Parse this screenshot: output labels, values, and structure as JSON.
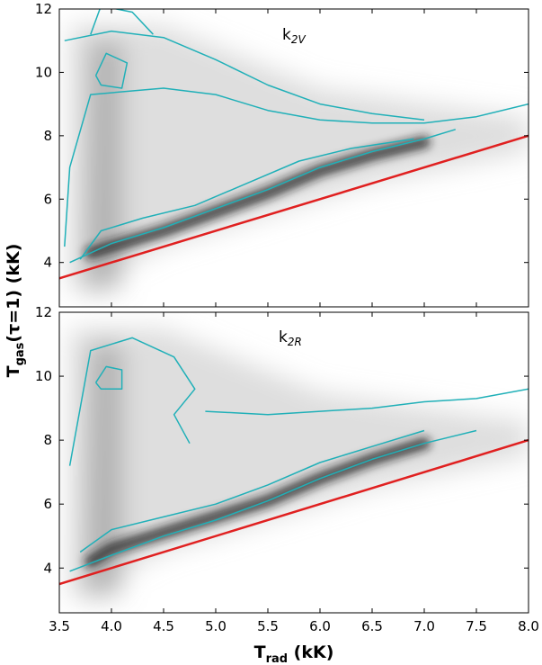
{
  "xlabel": {
    "main": "T",
    "sub": "rad",
    "rest": " (kK)"
  },
  "ylabel": {
    "main": "T",
    "sub": "gas",
    "rest": "(τ=1) (kK)"
  },
  "chart_data": [
    {
      "type": "heatmap",
      "panel_label": {
        "main": "k",
        "sub": "2V"
      },
      "xlim": [
        3.5,
        8.0
      ],
      "ylim": [
        2.6,
        12
      ],
      "xticks": [
        3.5,
        4.0,
        4.5,
        5.0,
        5.5,
        6.0,
        6.5,
        7.0,
        7.5,
        8.0
      ],
      "yticks": [
        4,
        6,
        8,
        10,
        12
      ],
      "reference_line": {
        "color": "#e02020",
        "points": [
          [
            3.5,
            3.5
          ],
          [
            8.0,
            8.0
          ]
        ]
      },
      "contour_color": "#20b0b8",
      "density_ridge": [
        [
          3.8,
          4.3
        ],
        [
          4.0,
          4.5
        ],
        [
          4.5,
          5.0
        ],
        [
          5.0,
          5.6
        ],
        [
          5.5,
          6.2
        ],
        [
          6.0,
          6.9
        ],
        [
          6.5,
          7.4
        ],
        [
          7.0,
          7.8
        ]
      ],
      "contours": [
        [
          [
            3.6,
            4.0
          ],
          [
            4.0,
            4.6
          ],
          [
            4.5,
            5.1
          ],
          [
            5.0,
            5.7
          ],
          [
            5.5,
            6.3
          ],
          [
            6.0,
            7.0
          ],
          [
            6.5,
            7.5
          ],
          [
            7.0,
            7.9
          ],
          [
            7.3,
            8.2
          ]
        ],
        [
          [
            3.7,
            4.1
          ],
          [
            3.9,
            5.0
          ],
          [
            4.3,
            5.4
          ],
          [
            4.8,
            5.8
          ],
          [
            5.3,
            6.5
          ],
          [
            5.8,
            7.2
          ],
          [
            6.3,
            7.6
          ],
          [
            6.9,
            7.9
          ]
        ],
        [
          [
            3.55,
            4.5
          ],
          [
            3.6,
            7.0
          ],
          [
            3.8,
            9.3
          ],
          [
            4.5,
            9.5
          ],
          [
            5.0,
            9.3
          ],
          [
            5.5,
            8.8
          ],
          [
            6.0,
            8.5
          ],
          [
            6.5,
            8.4
          ],
          [
            7.0,
            8.4
          ],
          [
            7.5,
            8.6
          ],
          [
            8.0,
            9.0
          ]
        ],
        [
          [
            3.55,
            11.0
          ],
          [
            4.0,
            11.3
          ],
          [
            4.5,
            11.1
          ],
          [
            5.0,
            10.4
          ],
          [
            5.5,
            9.6
          ],
          [
            6.0,
            9.0
          ],
          [
            6.5,
            8.7
          ],
          [
            7.0,
            8.5
          ]
        ],
        [
          [
            3.85,
            9.9
          ],
          [
            3.95,
            10.6
          ],
          [
            4.15,
            10.3
          ],
          [
            4.1,
            9.5
          ],
          [
            3.9,
            9.6
          ],
          [
            3.85,
            9.9
          ]
        ],
        [
          [
            3.8,
            11.2
          ],
          [
            3.9,
            12.1
          ],
          [
            4.2,
            11.9
          ],
          [
            4.4,
            11.2
          ]
        ]
      ]
    },
    {
      "type": "heatmap",
      "panel_label": {
        "main": "k",
        "sub": "2R"
      },
      "xlim": [
        3.5,
        8.0
      ],
      "ylim": [
        2.6,
        12
      ],
      "xticks": [
        3.5,
        4.0,
        4.5,
        5.0,
        5.5,
        6.0,
        6.5,
        7.0,
        7.5,
        8.0
      ],
      "yticks": [
        4,
        6,
        8,
        10,
        12
      ],
      "reference_line": {
        "color": "#e02020",
        "points": [
          [
            3.5,
            3.5
          ],
          [
            8.0,
            8.0
          ]
        ]
      },
      "contour_color": "#20b0b8",
      "density_ridge": [
        [
          3.8,
          4.2
        ],
        [
          4.0,
          4.6
        ],
        [
          4.5,
          5.1
        ],
        [
          5.0,
          5.6
        ],
        [
          5.5,
          6.1
        ],
        [
          6.0,
          6.8
        ],
        [
          6.5,
          7.4
        ],
        [
          7.0,
          7.9
        ]
      ],
      "contours": [
        [
          [
            3.6,
            3.9
          ],
          [
            4.0,
            4.4
          ],
          [
            4.5,
            5.0
          ],
          [
            5.0,
            5.5
          ],
          [
            5.5,
            6.1
          ],
          [
            6.0,
            6.8
          ],
          [
            6.5,
            7.4
          ],
          [
            7.0,
            7.9
          ],
          [
            7.5,
            8.3
          ]
        ],
        [
          [
            3.7,
            4.5
          ],
          [
            4.0,
            5.2
          ],
          [
            4.5,
            5.6
          ],
          [
            5.0,
            6.0
          ],
          [
            5.5,
            6.6
          ],
          [
            6.0,
            7.3
          ],
          [
            6.5,
            7.8
          ],
          [
            7.0,
            8.3
          ]
        ],
        [
          [
            3.6,
            7.2
          ],
          [
            3.7,
            9.0
          ],
          [
            3.8,
            10.8
          ],
          [
            4.2,
            11.2
          ],
          [
            4.6,
            10.6
          ],
          [
            4.8,
            9.6
          ],
          [
            4.6,
            8.8
          ],
          [
            4.75,
            7.9
          ]
        ],
        [
          [
            4.9,
            8.9
          ],
          [
            5.5,
            8.8
          ],
          [
            6.0,
            8.9
          ],
          [
            6.5,
            9.0
          ],
          [
            7.0,
            9.2
          ],
          [
            7.5,
            9.3
          ],
          [
            8.0,
            9.6
          ]
        ],
        [
          [
            3.85,
            9.8
          ],
          [
            3.95,
            10.3
          ],
          [
            4.1,
            10.2
          ],
          [
            4.1,
            9.6
          ],
          [
            3.9,
            9.6
          ],
          [
            3.85,
            9.8
          ]
        ]
      ]
    }
  ]
}
